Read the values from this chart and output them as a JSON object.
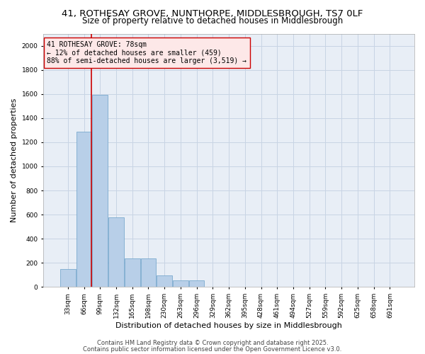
{
  "title1": "41, ROTHESAY GROVE, NUNTHORPE, MIDDLESBROUGH, TS7 0LF",
  "title2": "Size of property relative to detached houses in Middlesbrough",
  "xlabel": "Distribution of detached houses by size in Middlesbrough",
  "ylabel": "Number of detached properties",
  "categories": [
    "33sqm",
    "66sqm",
    "99sqm",
    "132sqm",
    "165sqm",
    "198sqm",
    "230sqm",
    "263sqm",
    "296sqm",
    "329sqm",
    "362sqm",
    "395sqm",
    "428sqm",
    "461sqm",
    "494sqm",
    "527sqm",
    "559sqm",
    "592sqm",
    "625sqm",
    "658sqm",
    "691sqm"
  ],
  "values": [
    150,
    1290,
    1590,
    580,
    235,
    235,
    95,
    55,
    55,
    0,
    0,
    0,
    0,
    0,
    0,
    0,
    0,
    0,
    0,
    0,
    0
  ],
  "bar_color": "#b8cfe8",
  "bar_edge_color": "#6a9fc8",
  "grid_color": "#c8d4e4",
  "bg_color": "#e8eef6",
  "vline_color": "#cc0000",
  "annotation_text": "41 ROTHESAY GROVE: 78sqm\n← 12% of detached houses are smaller (459)\n88% of semi-detached houses are larger (3,519) →",
  "annotation_box_facecolor": "#fde8e8",
  "annotation_box_edgecolor": "#cc0000",
  "footnote1": "Contains HM Land Registry data © Crown copyright and database right 2025.",
  "footnote2": "Contains public sector information licensed under the Open Government Licence v3.0.",
  "ylim": [
    0,
    2100
  ],
  "yticks": [
    0,
    200,
    400,
    600,
    800,
    1000,
    1200,
    1400,
    1600,
    1800,
    2000
  ],
  "title_fontsize": 9.5,
  "subtitle_fontsize": 8.5,
  "tick_fontsize": 6.5,
  "ylabel_fontsize": 8,
  "xlabel_fontsize": 8,
  "footnote_fontsize": 6,
  "annotation_fontsize": 7
}
